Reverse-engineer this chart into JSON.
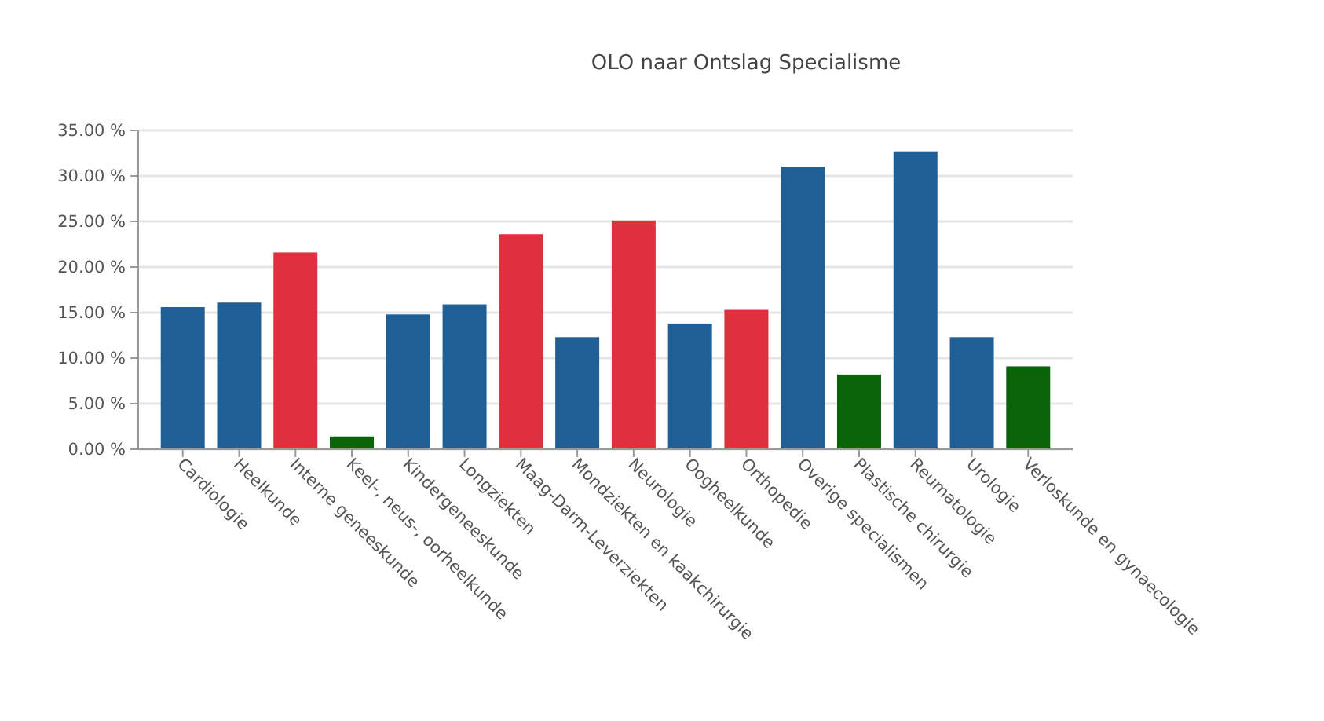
{
  "chart_data": {
    "type": "bar",
    "title": "OLO naar Ontslag Specialisme",
    "categories": [
      "Cardiologie",
      "Heelkunde",
      "Interne geneeskunde",
      "Keel-, neus-, oorheelkunde",
      "Kindergeneeskunde",
      "Longziekten",
      "Maag-Darm-Leverziekten",
      "Mondziekten en kaakchirurgie",
      "Neurologie",
      "Oogheelkunde",
      "Orthopedie",
      "Overige specialismen",
      "Plastische chirurgie",
      "Reumatologie",
      "Urologie",
      "Verloskunde en gynaecologie"
    ],
    "values": [
      15.6,
      16.1,
      21.6,
      1.4,
      14.8,
      15.9,
      23.6,
      12.3,
      25.1,
      13.8,
      15.3,
      31.0,
      8.2,
      32.7,
      12.3,
      9.1
    ],
    "colors": [
      "#1f5f96",
      "#1f5f96",
      "#e0303d",
      "#0a640a",
      "#1f5f96",
      "#1f5f96",
      "#e0303d",
      "#1f5f96",
      "#e0303d",
      "#1f5f96",
      "#e0303d",
      "#1f5f96",
      "#0a640a",
      "#1f5f96",
      "#1f5f96",
      "#0a640a"
    ],
    "ylim": [
      0,
      35
    ],
    "yticks": [
      {
        "value": 0,
        "label": "0.00 %"
      },
      {
        "value": 5,
        "label": "5.00 %"
      },
      {
        "value": 10,
        "label": "10.00 %"
      },
      {
        "value": 15,
        "label": "15.00 %"
      },
      {
        "value": 20,
        "label": "20.00 %"
      },
      {
        "value": 25,
        "label": "25.00 %"
      },
      {
        "value": 30,
        "label": "30.00 %"
      },
      {
        "value": 35,
        "label": "35.00 %"
      }
    ],
    "grid": "y"
  }
}
